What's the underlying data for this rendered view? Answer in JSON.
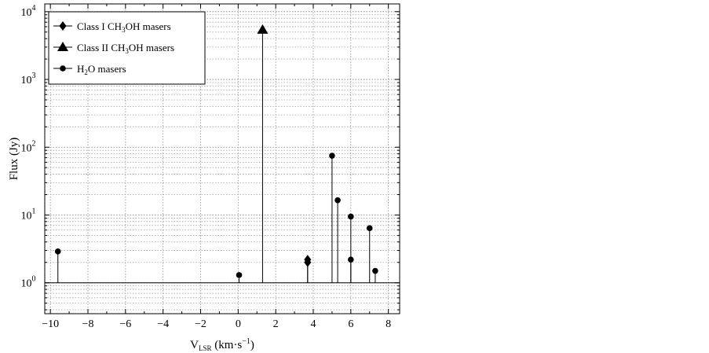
{
  "chart_data": {
    "type": "scatter",
    "subtype": "stem",
    "xlabel_main": "V",
    "xlabel_sub": "LSR",
    "xlabel_unit": " (km·s",
    "xlabel_unit_exp": "−1",
    "xlabel_unit_close": ")",
    "ylabel": "Flux (Jy)",
    "xlim": [
      -10.3,
      8.6
    ],
    "ylim": [
      0.35,
      13000
    ],
    "yscale": "log",
    "baseline": 1,
    "grid": true,
    "legend_position": "top-left",
    "x_ticks": [
      -10,
      -8,
      -6,
      -4,
      -2,
      0,
      2,
      4,
      6,
      8
    ],
    "x_tick_labels": [
      "−10",
      "−8",
      "−6",
      "−4",
      "−2",
      "0",
      "2",
      "4",
      "6",
      "8"
    ],
    "y_ticks": [
      1,
      10,
      100,
      1000,
      10000
    ],
    "y_tick_base": "10",
    "y_tick_exps": [
      "0",
      "1",
      "2",
      "3",
      "4"
    ],
    "series": [
      {
        "name_parts": [
          "Class I CH",
          "3",
          "OH masers"
        ],
        "marker": "diamond",
        "points": [
          {
            "x": 3.7,
            "y": 2.2
          },
          {
            "x": 3.7,
            "y": 2.0
          }
        ]
      },
      {
        "name_parts": [
          "Class II CH",
          "3",
          "OH masers"
        ],
        "marker": "triangle",
        "points": [
          {
            "x": 1.3,
            "y": 5400
          }
        ]
      },
      {
        "name_parts": [
          "H",
          "2",
          "O masers"
        ],
        "marker": "circle",
        "points": [
          {
            "x": -9.6,
            "y": 2.9
          },
          {
            "x": 0.05,
            "y": 1.3
          },
          {
            "x": 5.0,
            "y": 75
          },
          {
            "x": 5.3,
            "y": 16.5
          },
          {
            "x": 6.0,
            "y": 9.5
          },
          {
            "x": 6.0,
            "y": 2.2
          },
          {
            "x": 7.0,
            "y": 6.4
          },
          {
            "x": 7.3,
            "y": 1.5
          }
        ]
      }
    ]
  }
}
